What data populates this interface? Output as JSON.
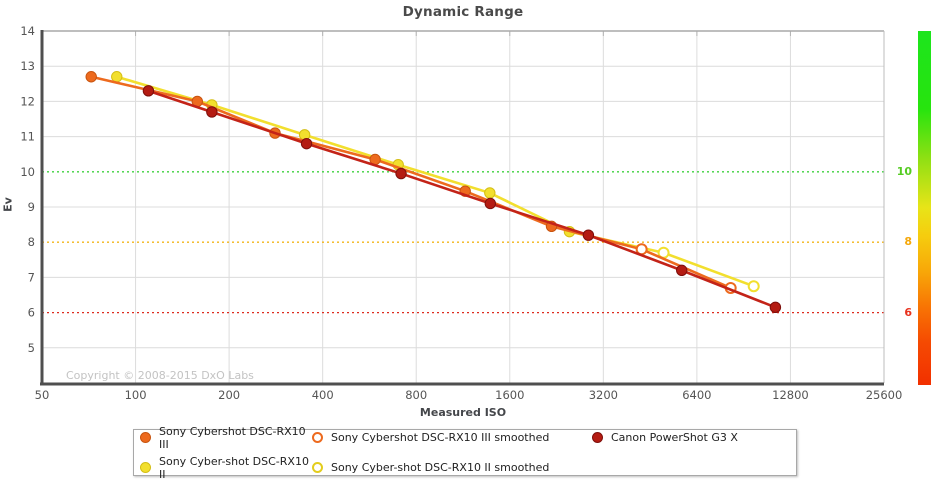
{
  "title": "Dynamic Range",
  "copyright": "Copyright © 2008-2015 DxO Labs",
  "x_axis": {
    "label": "Measured ISO",
    "ticks": [
      50,
      100,
      200,
      400,
      800,
      1600,
      3200,
      6400,
      12800,
      25600
    ]
  },
  "y_axis": {
    "label": "Ev",
    "ticks": [
      14,
      13,
      12,
      11,
      10,
      9,
      8,
      7,
      6,
      5
    ]
  },
  "reference_lines": [
    {
      "ev": 10,
      "color": "#3fd23f"
    },
    {
      "ev": 8,
      "color": "#f2b418"
    },
    {
      "ev": 6,
      "color": "#de2b1e"
    }
  ],
  "colorbar": {
    "labels": [
      {
        "value": "10",
        "ev": 10,
        "color": "#55cc22"
      },
      {
        "value": "8",
        "ev": 8,
        "color": "#f5a80b"
      },
      {
        "value": "6",
        "ev": 6,
        "color": "#e8321e"
      }
    ]
  },
  "chart_data": {
    "type": "line",
    "title": "Dynamic Range",
    "xlabel": "Measured ISO",
    "ylabel": "Ev",
    "x_scale": "log2",
    "xlim": [
      50,
      25600
    ],
    "ylim": [
      4,
      14
    ],
    "grid": true,
    "legend_position": "bottom",
    "series": [
      {
        "name": "Sony Cyber-shot DSC-RX10 II",
        "color": "#f2df2e",
        "marker_stroke": "#d4be14",
        "points": [
          {
            "iso": 87,
            "ev": 12.7,
            "smoothed": false
          },
          {
            "iso": 176,
            "ev": 11.9,
            "smoothed": false
          },
          {
            "iso": 350,
            "ev": 11.05,
            "smoothed": false
          },
          {
            "iso": 700,
            "ev": 10.2,
            "smoothed": false
          },
          {
            "iso": 1380,
            "ev": 9.4,
            "smoothed": false
          },
          {
            "iso": 2490,
            "ev": 8.3,
            "smoothed": false
          },
          {
            "iso": 5000,
            "ev": 7.7,
            "smoothed": true
          },
          {
            "iso": 9750,
            "ev": 6.75,
            "smoothed": true
          }
        ]
      },
      {
        "name": "Sony Cybershot DSC-RX10 III",
        "color": "#ed6a1e",
        "marker_stroke": "#c8540f",
        "points": [
          {
            "iso": 72,
            "ev": 12.7,
            "smoothed": false
          },
          {
            "iso": 158,
            "ev": 12.0,
            "smoothed": false
          },
          {
            "iso": 281,
            "ev": 11.1,
            "smoothed": false
          },
          {
            "iso": 590,
            "ev": 10.35,
            "smoothed": false
          },
          {
            "iso": 1150,
            "ev": 9.45,
            "smoothed": false
          },
          {
            "iso": 2180,
            "ev": 8.45,
            "smoothed": false
          },
          {
            "iso": 4250,
            "ev": 7.8,
            "smoothed": true
          },
          {
            "iso": 8220,
            "ev": 6.7,
            "smoothed": true
          }
        ]
      },
      {
        "name": "Canon PowerShot G3 X",
        "color": "#c32318",
        "marker_stroke": "#7e0f0b",
        "marker_fill": "#b41b12",
        "points": [
          {
            "iso": 110,
            "ev": 12.3,
            "smoothed": false
          },
          {
            "iso": 176,
            "ev": 11.7,
            "smoothed": false
          },
          {
            "iso": 355,
            "ev": 10.8,
            "smoothed": false
          },
          {
            "iso": 715,
            "ev": 9.95,
            "smoothed": false
          },
          {
            "iso": 1385,
            "ev": 9.1,
            "smoothed": false
          },
          {
            "iso": 2865,
            "ev": 8.2,
            "smoothed": false
          },
          {
            "iso": 5720,
            "ev": 7.2,
            "smoothed": false
          },
          {
            "iso": 11450,
            "ev": 6.15,
            "smoothed": false
          }
        ]
      }
    ]
  },
  "legend": {
    "items": [
      {
        "label": "Sony Cybershot DSC-RX10 III",
        "color": "#ed6a1e",
        "border": "#c8540f",
        "marker": "filled"
      },
      {
        "label": "Sony Cybershot DSC-RX10 III smoothed",
        "color": "#ffffff",
        "border": "#ed6a1e",
        "marker": "open"
      },
      {
        "label": "Canon PowerShot G3 X",
        "color": "#b41b12",
        "border": "#7e0f0b",
        "marker": "filled"
      },
      {
        "label": "Sony Cyber-shot DSC-RX10 II",
        "color": "#f2df2e",
        "border": "#d4be14",
        "marker": "filled"
      },
      {
        "label": "Sony Cyber-shot DSC-RX10 II smoothed",
        "color": "#ffffff",
        "border": "#e3cd1d",
        "marker": "open"
      }
    ]
  }
}
